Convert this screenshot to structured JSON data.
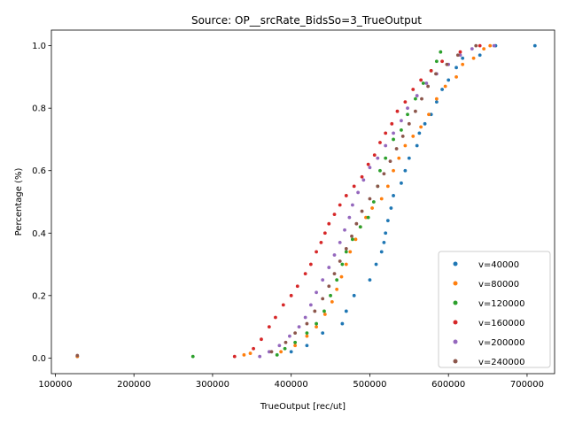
{
  "chart_data": {
    "type": "scatter",
    "title": "Source: OP__srcRate_BidsSo=3_TrueOutput",
    "xlabel": "TrueOutput [rec/ut]",
    "ylabel": "Percentage (%)",
    "xlim": [
      95000,
      735000
    ],
    "ylim": [
      -0.05,
      1.05
    ],
    "xticks": [
      100000,
      200000,
      300000,
      400000,
      500000,
      600000,
      700000
    ],
    "xtick_labels": [
      "100000",
      "200000",
      "300000",
      "400000",
      "500000",
      "600000",
      "700000"
    ],
    "yticks": [
      0.0,
      0.2,
      0.4,
      0.6,
      0.8,
      1.0
    ],
    "ytick_labels": [
      "0.0",
      "0.2",
      "0.4",
      "0.6",
      "0.8",
      "1.0"
    ],
    "grid": false,
    "legend_position": "lower-right",
    "series": [
      {
        "name": "v=40000",
        "color": "#1f77b4",
        "points": [
          [
            128000,
            0.005
          ],
          [
            400000,
            0.02
          ],
          [
            420000,
            0.04
          ],
          [
            440000,
            0.08
          ],
          [
            465000,
            0.11
          ],
          [
            470000,
            0.15
          ],
          [
            480000,
            0.2
          ],
          [
            500000,
            0.25
          ],
          [
            508000,
            0.3
          ],
          [
            515000,
            0.34
          ],
          [
            518000,
            0.37
          ],
          [
            520000,
            0.4
          ],
          [
            523000,
            0.44
          ],
          [
            527000,
            0.48
          ],
          [
            530000,
            0.52
          ],
          [
            540000,
            0.56
          ],
          [
            545000,
            0.6
          ],
          [
            550000,
            0.64
          ],
          [
            560000,
            0.68
          ],
          [
            563000,
            0.72
          ],
          [
            570000,
            0.75
          ],
          [
            578000,
            0.78
          ],
          [
            585000,
            0.82
          ],
          [
            592000,
            0.86
          ],
          [
            600000,
            0.89
          ],
          [
            610000,
            0.93
          ],
          [
            618000,
            0.96
          ],
          [
            640000,
            0.97
          ],
          [
            660000,
            1.0
          ],
          [
            710000,
            1.0
          ]
        ]
      },
      {
        "name": "v=80000",
        "color": "#ff7f0e",
        "points": [
          [
            128000,
            0.005
          ],
          [
            340000,
            0.01
          ],
          [
            348000,
            0.015
          ],
          [
            387000,
            0.02
          ],
          [
            405000,
            0.04
          ],
          [
            420000,
            0.07
          ],
          [
            432000,
            0.1
          ],
          [
            443000,
            0.14
          ],
          [
            452000,
            0.18
          ],
          [
            458000,
            0.22
          ],
          [
            464000,
            0.26
          ],
          [
            470000,
            0.3
          ],
          [
            475000,
            0.34
          ],
          [
            482000,
            0.38
          ],
          [
            488000,
            0.42
          ],
          [
            495000,
            0.45
          ],
          [
            503000,
            0.48
          ],
          [
            515000,
            0.51
          ],
          [
            523000,
            0.55
          ],
          [
            530000,
            0.6
          ],
          [
            537000,
            0.64
          ],
          [
            545000,
            0.68
          ],
          [
            555000,
            0.71
          ],
          [
            565000,
            0.74
          ],
          [
            575000,
            0.78
          ],
          [
            585000,
            0.83
          ],
          [
            596000,
            0.87
          ],
          [
            610000,
            0.9
          ],
          [
            618000,
            0.94
          ],
          [
            632000,
            0.96
          ],
          [
            645000,
            0.99
          ],
          [
            653000,
            1.0
          ]
        ]
      },
      {
        "name": "v=120000",
        "color": "#2ca02c",
        "points": [
          [
            275000,
            0.005
          ],
          [
            382000,
            0.01
          ],
          [
            392000,
            0.03
          ],
          [
            405000,
            0.05
          ],
          [
            420000,
            0.08
          ],
          [
            432000,
            0.11
          ],
          [
            442000,
            0.15
          ],
          [
            450000,
            0.2
          ],
          [
            458000,
            0.25
          ],
          [
            465000,
            0.3
          ],
          [
            470000,
            0.34
          ],
          [
            478000,
            0.38
          ],
          [
            488000,
            0.42
          ],
          [
            498000,
            0.45
          ],
          [
            505000,
            0.5
          ],
          [
            510000,
            0.55
          ],
          [
            513000,
            0.6
          ],
          [
            520000,
            0.64
          ],
          [
            530000,
            0.7
          ],
          [
            540000,
            0.73
          ],
          [
            548000,
            0.78
          ],
          [
            558000,
            0.83
          ],
          [
            568000,
            0.88
          ],
          [
            578000,
            0.92
          ],
          [
            585000,
            0.95
          ],
          [
            590000,
            0.98
          ]
        ]
      },
      {
        "name": "v=160000",
        "color": "#d62728",
        "points": [
          [
            328000,
            0.005
          ],
          [
            352000,
            0.03
          ],
          [
            362000,
            0.06
          ],
          [
            372000,
            0.1
          ],
          [
            380000,
            0.13
          ],
          [
            390000,
            0.17
          ],
          [
            400000,
            0.2
          ],
          [
            408000,
            0.23
          ],
          [
            418000,
            0.27
          ],
          [
            425000,
            0.3
          ],
          [
            432000,
            0.34
          ],
          [
            438000,
            0.37
          ],
          [
            443000,
            0.4
          ],
          [
            448000,
            0.43
          ],
          [
            455000,
            0.46
          ],
          [
            462000,
            0.49
          ],
          [
            470000,
            0.52
          ],
          [
            480000,
            0.55
          ],
          [
            490000,
            0.58
          ],
          [
            498000,
            0.62
          ],
          [
            506000,
            0.65
          ],
          [
            513000,
            0.69
          ],
          [
            520000,
            0.72
          ],
          [
            528000,
            0.75
          ],
          [
            535000,
            0.79
          ],
          [
            545000,
            0.82
          ],
          [
            555000,
            0.86
          ],
          [
            565000,
            0.89
          ],
          [
            578000,
            0.92
          ],
          [
            592000,
            0.95
          ],
          [
            615000,
            0.98
          ],
          [
            640000,
            1.0
          ]
        ]
      },
      {
        "name": "v=200000",
        "color": "#9467bd",
        "points": [
          [
            360000,
            0.005
          ],
          [
            372000,
            0.02
          ],
          [
            385000,
            0.04
          ],
          [
            398000,
            0.07
          ],
          [
            410000,
            0.1
          ],
          [
            418000,
            0.13
          ],
          [
            425000,
            0.17
          ],
          [
            432000,
            0.21
          ],
          [
            440000,
            0.25
          ],
          [
            448000,
            0.29
          ],
          [
            455000,
            0.33
          ],
          [
            462000,
            0.37
          ],
          [
            468000,
            0.41
          ],
          [
            474000,
            0.45
          ],
          [
            478000,
            0.49
          ],
          [
            485000,
            0.53
          ],
          [
            492000,
            0.57
          ],
          [
            500000,
            0.61
          ],
          [
            510000,
            0.64
          ],
          [
            520000,
            0.68
          ],
          [
            530000,
            0.72
          ],
          [
            540000,
            0.76
          ],
          [
            548000,
            0.8
          ],
          [
            560000,
            0.84
          ],
          [
            572000,
            0.88
          ],
          [
            585000,
            0.91
          ],
          [
            600000,
            0.94
          ],
          [
            615000,
            0.97
          ],
          [
            630000,
            0.99
          ],
          [
            658000,
            1.0
          ]
        ]
      },
      {
        "name": "v=240000",
        "color": "#8c564b",
        "points": [
          [
            128000,
            0.008
          ],
          [
            375000,
            0.02
          ],
          [
            393000,
            0.05
          ],
          [
            405000,
            0.08
          ],
          [
            420000,
            0.11
          ],
          [
            430000,
            0.15
          ],
          [
            440000,
            0.19
          ],
          [
            448000,
            0.23
          ],
          [
            455000,
            0.27
          ],
          [
            462000,
            0.31
          ],
          [
            470000,
            0.35
          ],
          [
            477000,
            0.39
          ],
          [
            483000,
            0.43
          ],
          [
            490000,
            0.47
          ],
          [
            500000,
            0.51
          ],
          [
            510000,
            0.55
          ],
          [
            518000,
            0.59
          ],
          [
            526000,
            0.63
          ],
          [
            534000,
            0.67
          ],
          [
            542000,
            0.71
          ],
          [
            550000,
            0.75
          ],
          [
            558000,
            0.79
          ],
          [
            566000,
            0.83
          ],
          [
            574000,
            0.87
          ],
          [
            584000,
            0.91
          ],
          [
            598000,
            0.94
          ],
          [
            612000,
            0.97
          ],
          [
            635000,
            1.0
          ]
        ]
      }
    ]
  }
}
